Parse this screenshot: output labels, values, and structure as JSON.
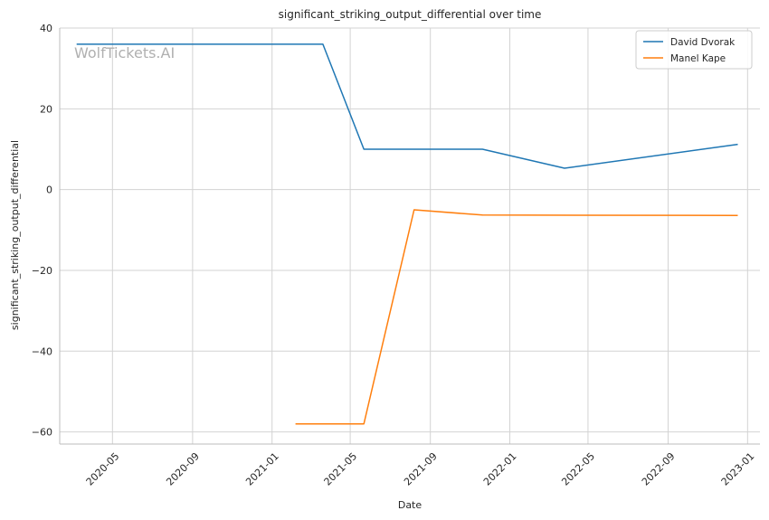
{
  "watermark": "WolfTickets.AI",
  "colors": {
    "david": "#1f77b4",
    "manel": "#ff7f0e",
    "grid": "#d3d3d3",
    "axis": "#bcbcbc"
  },
  "chart_data": {
    "type": "line",
    "title": "significant_striking_output_differential over time",
    "xlabel": "Date",
    "ylabel": "significant_striking_output_differential",
    "xlim": [
      "2020-02-10",
      "2023-01-20"
    ],
    "ylim": [
      -63,
      40
    ],
    "yticks": [
      40,
      20,
      0,
      -20,
      -40,
      -60
    ],
    "ytick_labels": [
      "40",
      "20",
      "0",
      "−20",
      "−40",
      "−60"
    ],
    "xticks": [
      "2020-05-01",
      "2020-09-01",
      "2021-01-01",
      "2021-05-01",
      "2021-09-01",
      "2022-01-01",
      "2022-05-01",
      "2022-09-01",
      "2023-01-01"
    ],
    "xtick_labels": [
      "2020-05",
      "2020-09",
      "2021-01",
      "2021-05",
      "2021-09",
      "2022-01",
      "2022-05",
      "2022-09",
      "2023-01"
    ],
    "grid": true,
    "legend_position": "top-right",
    "series": [
      {
        "name": "David Dvorak",
        "color": "#1f77b4",
        "points": [
          {
            "x": "2020-03-07",
            "y": 36
          },
          {
            "x": "2021-03-20",
            "y": 36
          },
          {
            "x": "2021-05-22",
            "y": 10
          },
          {
            "x": "2021-11-20",
            "y": 10
          },
          {
            "x": "2022-03-26",
            "y": 5.3
          },
          {
            "x": "2022-12-17",
            "y": 11.2
          }
        ]
      },
      {
        "name": "Manel Kape",
        "color": "#ff7f0e",
        "points": [
          {
            "x": "2021-02-06",
            "y": -58
          },
          {
            "x": "2021-05-22",
            "y": -58
          },
          {
            "x": "2021-08-07",
            "y": -5
          },
          {
            "x": "2021-11-20",
            "y": -6.3
          },
          {
            "x": "2022-12-17",
            "y": -6.4
          }
        ]
      }
    ]
  }
}
